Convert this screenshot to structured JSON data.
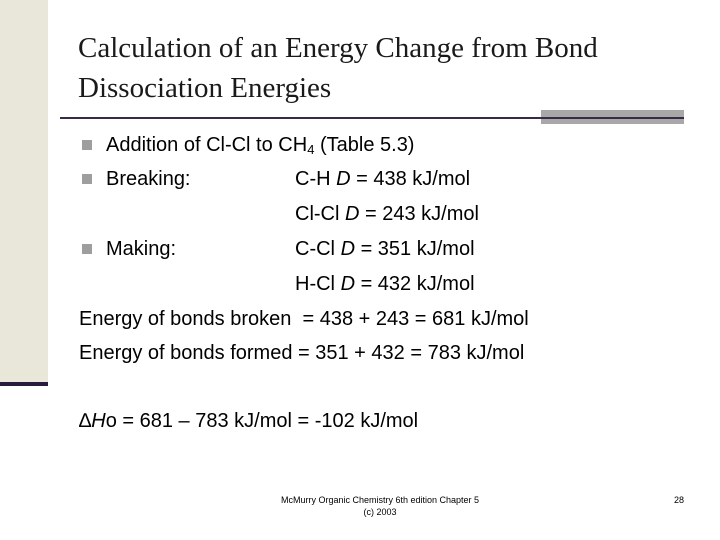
{
  "title": {
    "line1": "Calculation of an Energy Change from Bond",
    "line2": "Dissociation Energies"
  },
  "bullets": {
    "addition": {
      "text_pre": "Addition of Cl-Cl to CH",
      "sub": "4",
      "text_post": " (Table 5.3)"
    },
    "breaking": {
      "label": "Breaking:",
      "bond1": {
        "bond": "C-H",
        "d": "D",
        "value": " = 438 kJ/mol"
      },
      "bond2": {
        "bond": "Cl-Cl",
        "d": "D",
        "value": " = 243 kJ/mol"
      }
    },
    "making": {
      "label": "Making:",
      "bond1": {
        "bond": "C-Cl",
        "d": "D",
        "value": " = 351 kJ/mol"
      },
      "bond2": {
        "bond": "H-Cl",
        "d": "D",
        "value": " = 432 kJ/mol"
      }
    }
  },
  "energy_broken": "Energy of bonds broken  = 438 + 243 = 681 kJ/mol",
  "energy_formed": "Energy of bonds formed = 351 + 432 = 783 kJ/mol",
  "delta_h": {
    "delta": "∆",
    "h": "H",
    "deg": "o",
    "rest": " = 681 – 783 kJ/mol = -102 kJ/mol"
  },
  "footer": {
    "line1": "McMurry Organic Chemistry 6th edition Chapter 5",
    "line2": "(c) 2003"
  },
  "page_number": "28",
  "colors": {
    "accent_dark": "#3a2a4a",
    "band": "#e9e6da",
    "bullet": "#9e9e9e",
    "grey_bar": "#a8a8a8"
  }
}
